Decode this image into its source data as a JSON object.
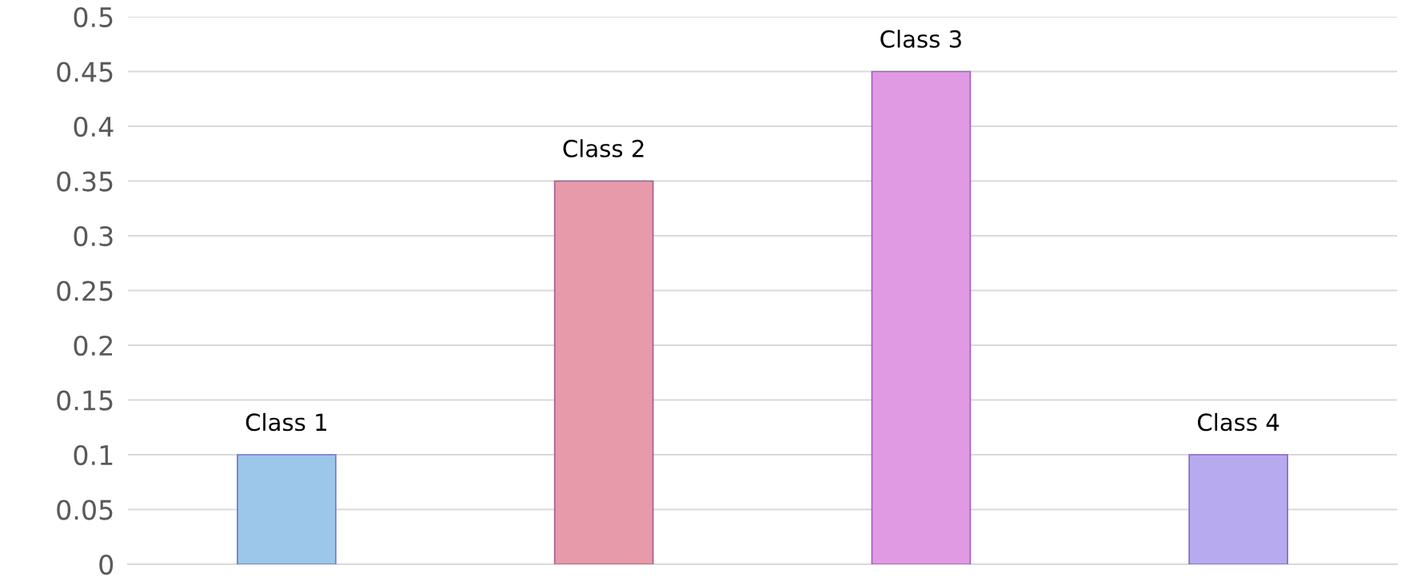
{
  "chart_data": {
    "type": "bar",
    "categories": [
      "Class 1",
      "Class 2",
      "Class 3",
      "Class 4"
    ],
    "values": [
      0.1,
      0.35,
      0.45,
      0.1
    ],
    "colors": [
      "#9cc6ea",
      "#e69aaa",
      "#e09ae4",
      "#b8aaee"
    ],
    "ylim": [
      0,
      0.5
    ],
    "yticks": [
      0,
      0.05,
      0.1,
      0.15,
      0.2,
      0.25,
      0.3,
      0.35,
      0.4,
      0.45,
      0.5
    ],
    "grid": "y",
    "tick_labels": "y"
  }
}
